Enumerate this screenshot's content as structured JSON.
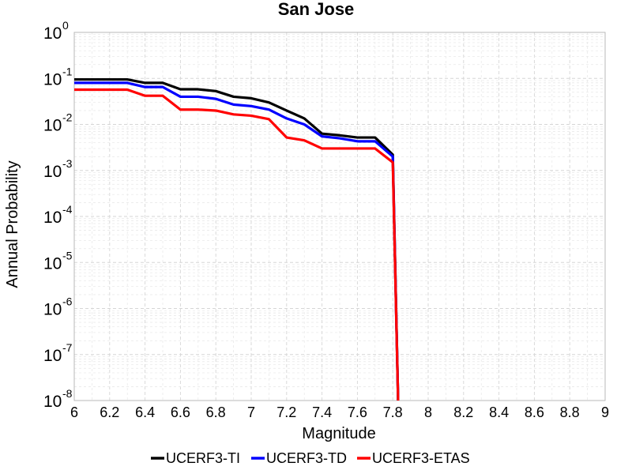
{
  "chart_data": {
    "type": "line",
    "title": "San Jose",
    "xlabel": "Magnitude",
    "ylabel": "Annual Probability",
    "xlim": [
      6,
      9
    ],
    "ylim": [
      1e-08,
      1
    ],
    "yscale": "log",
    "grid": true,
    "legend_position": "bottom",
    "x_ticks": [
      "6",
      "6.2",
      "6.4",
      "6.6",
      "6.8",
      "7",
      "7.2",
      "7.4",
      "7.6",
      "7.8",
      "8",
      "8.2",
      "8.4",
      "8.6",
      "8.8",
      "9"
    ],
    "y_ticks": [
      {
        "value": 1,
        "base": "10",
        "exp": "0"
      },
      {
        "value": 0.1,
        "base": "10",
        "exp": "-1"
      },
      {
        "value": 0.01,
        "base": "10",
        "exp": "-2"
      },
      {
        "value": 0.001,
        "base": "10",
        "exp": "-3"
      },
      {
        "value": 0.0001,
        "base": "10",
        "exp": "-4"
      },
      {
        "value": 1e-05,
        "base": "10",
        "exp": "-5"
      },
      {
        "value": 1e-06,
        "base": "10",
        "exp": "-6"
      },
      {
        "value": 1e-07,
        "base": "10",
        "exp": "-7"
      },
      {
        "value": 1e-08,
        "base": "10",
        "exp": "-8"
      }
    ],
    "series": [
      {
        "name": "UCERF3-TI",
        "color": "#000000",
        "points": [
          [
            6.0,
            0.095
          ],
          [
            6.1,
            0.095
          ],
          [
            6.2,
            0.095
          ],
          [
            6.3,
            0.095
          ],
          [
            6.4,
            0.08
          ],
          [
            6.5,
            0.08
          ],
          [
            6.6,
            0.058
          ],
          [
            6.7,
            0.058
          ],
          [
            6.8,
            0.053
          ],
          [
            6.9,
            0.04
          ],
          [
            7.0,
            0.037
          ],
          [
            7.1,
            0.03
          ],
          [
            7.2,
            0.02
          ],
          [
            7.3,
            0.0135
          ],
          [
            7.4,
            0.0063
          ],
          [
            7.5,
            0.0058
          ],
          [
            7.6,
            0.0052
          ],
          [
            7.7,
            0.0052
          ],
          [
            7.8,
            0.0022
          ],
          [
            7.83,
            1e-08
          ]
        ]
      },
      {
        "name": "UCERF3-TD",
        "color": "#0000ff",
        "points": [
          [
            6.0,
            0.08
          ],
          [
            6.1,
            0.08
          ],
          [
            6.2,
            0.08
          ],
          [
            6.3,
            0.08
          ],
          [
            6.4,
            0.065
          ],
          [
            6.5,
            0.065
          ],
          [
            6.6,
            0.04
          ],
          [
            6.7,
            0.04
          ],
          [
            6.8,
            0.036
          ],
          [
            6.9,
            0.027
          ],
          [
            7.0,
            0.025
          ],
          [
            7.1,
            0.021
          ],
          [
            7.2,
            0.0135
          ],
          [
            7.3,
            0.01
          ],
          [
            7.4,
            0.0055
          ],
          [
            7.5,
            0.005
          ],
          [
            7.6,
            0.0043
          ],
          [
            7.7,
            0.0043
          ],
          [
            7.8,
            0.002
          ],
          [
            7.83,
            1e-08
          ]
        ]
      },
      {
        "name": "UCERF3-ETAS",
        "color": "#ff0000",
        "points": [
          [
            6.0,
            0.057
          ],
          [
            6.1,
            0.057
          ],
          [
            6.2,
            0.057
          ],
          [
            6.3,
            0.057
          ],
          [
            6.4,
            0.042
          ],
          [
            6.5,
            0.042
          ],
          [
            6.6,
            0.021
          ],
          [
            6.7,
            0.021
          ],
          [
            6.8,
            0.02
          ],
          [
            6.9,
            0.0165
          ],
          [
            7.0,
            0.0155
          ],
          [
            7.1,
            0.013
          ],
          [
            7.2,
            0.0052
          ],
          [
            7.3,
            0.0045
          ],
          [
            7.4,
            0.003
          ],
          [
            7.5,
            0.003
          ],
          [
            7.6,
            0.003
          ],
          [
            7.7,
            0.003
          ],
          [
            7.8,
            0.0015
          ],
          [
            7.83,
            1e-08
          ]
        ]
      }
    ]
  }
}
